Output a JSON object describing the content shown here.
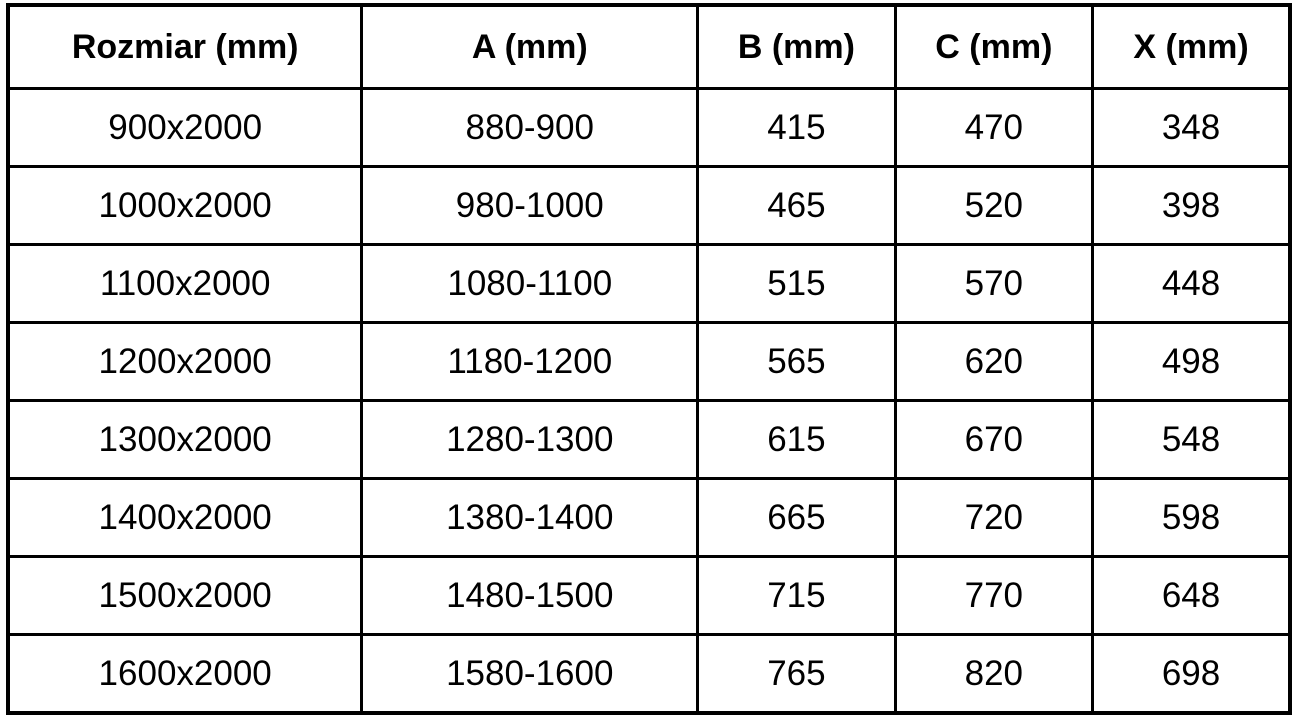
{
  "table": {
    "headers": [
      "Rozmiar (mm)",
      "A (mm)",
      "B (mm)",
      "C (mm)",
      "X (mm)"
    ],
    "rows": [
      [
        "900x2000",
        "880-900",
        "415",
        "470",
        "348"
      ],
      [
        "1000x2000",
        "980-1000",
        "465",
        "520",
        "398"
      ],
      [
        "1100x2000",
        "1080-1100",
        "515",
        "570",
        "448"
      ],
      [
        "1200x2000",
        "1180-1200",
        "565",
        "620",
        "498"
      ],
      [
        "1300x2000",
        "1280-1300",
        "615",
        "670",
        "548"
      ],
      [
        "1400x2000",
        "1380-1400",
        "665",
        "720",
        "598"
      ],
      [
        "1500x2000",
        "1480-1500",
        "715",
        "770",
        "648"
      ],
      [
        "1600x2000",
        "1580-1600",
        "765",
        "820",
        "698"
      ]
    ]
  },
  "colors": {
    "border": "#000000",
    "text": "#000000",
    "background": "#ffffff"
  }
}
